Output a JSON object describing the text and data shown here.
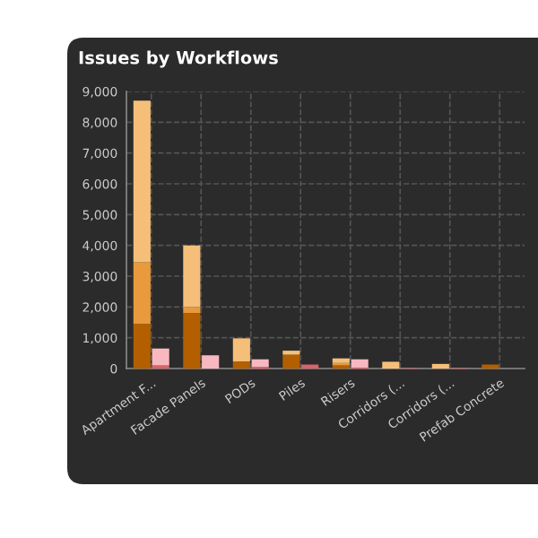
{
  "chart_data": {
    "type": "bar",
    "title": "Issues by Workflows",
    "categories": [
      "Apartment F...",
      "Facade Panels",
      "PODs",
      "Piles",
      "Risers",
      "Corridors (...",
      "Corridors (...",
      "Prefab Concrete"
    ],
    "series": [
      {
        "color": "#b35f00",
        "base": [
          0,
          0,
          0,
          0,
          0,
          null,
          null,
          0
        ],
        "values": [
          1450,
          1800,
          230,
          450,
          100,
          null,
          null,
          130
        ]
      },
      {
        "color": "#e89a3c",
        "base": [
          1450,
          1800,
          null,
          null,
          100,
          null,
          null,
          null
        ],
        "values": [
          2000,
          200,
          null,
          null,
          80,
          null,
          null,
          null
        ]
      },
      {
        "color": "#f5bf7a",
        "base": [
          3450,
          2000,
          230,
          450,
          180,
          0,
          0,
          null
        ],
        "values": [
          5250,
          2000,
          750,
          130,
          150,
          220,
          150,
          null
        ]
      },
      {
        "color": "#d9636b",
        "base": [
          0,
          null,
          0,
          0,
          0,
          0,
          0,
          null
        ],
        "values": [
          100,
          null,
          50,
          130,
          30,
          20,
          20,
          null
        ]
      },
      {
        "color": "#f8b8c0",
        "base": [
          100,
          0,
          50,
          null,
          30,
          null,
          null,
          null
        ],
        "values": [
          550,
          430,
          250,
          null,
          270,
          null,
          null,
          null
        ]
      }
    ],
    "ylim": [
      0,
      9000
    ],
    "yticks": [
      0,
      {
        "value": 1000,
        "label": "1,000"
      },
      {
        "value": 2000,
        "label": "2,000"
      },
      {
        "value": 3000,
        "label": "3,000"
      },
      {
        "value": 4000,
        "label": "4,000"
      },
      {
        "value": 5000,
        "label": "5,000"
      },
      {
        "value": 6000,
        "label": "6,000"
      },
      {
        "value": 7000,
        "label": "7,000"
      },
      {
        "value": 8000,
        "label": "8,000"
      },
      {
        "value": 9000,
        "label": "9,000"
      }
    ],
    "grid": true
  }
}
